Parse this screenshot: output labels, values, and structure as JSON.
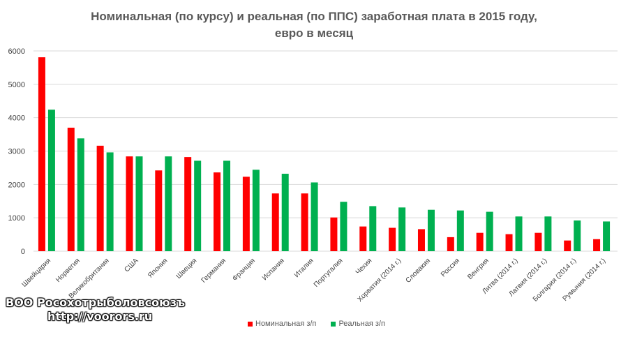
{
  "chart_data": {
    "type": "bar",
    "title_line1": "Номинальная (по курсу) и реальная (по ППС) заработная плата в 2015 году,",
    "title_line2": "евро в месяц",
    "categories": [
      "Швейцария",
      "Норвегия",
      "Великобритания",
      "США",
      "Япония",
      "Швеция",
      "Германия",
      "Франция",
      "Испания",
      "Италия",
      "Португалия",
      "Чехия",
      "Хорватия (2014 г.)",
      "Словакия",
      "Россия",
      "Венгрия",
      "Литва (2014 г.)",
      "Латвия (2014 г.)",
      "Болгария (2014 г.)",
      "Румыния (2014 г.)"
    ],
    "series": [
      {
        "name": "Номинальная з/п",
        "color": "#ff0000",
        "values": [
          5810,
          3700,
          3160,
          2840,
          2420,
          2820,
          2360,
          2230,
          1730,
          1730,
          1010,
          740,
          700,
          660,
          420,
          550,
          510,
          550,
          320,
          360
        ]
      },
      {
        "name": "Реальная з/п",
        "color": "#00b050",
        "values": [
          4240,
          3380,
          2960,
          2840,
          2840,
          2710,
          2710,
          2440,
          2320,
          2060,
          1480,
          1350,
          1310,
          1240,
          1220,
          1180,
          1040,
          1040,
          920,
          890
        ]
      }
    ],
    "yticks": [
      0,
      1000,
      2000,
      3000,
      4000,
      5000,
      6000
    ],
    "ylim": [
      0,
      6000
    ],
    "grid": true,
    "legend_position": "bottom"
  },
  "watermark": {
    "line1": "ВОО Росохотрыболовсоюзъ",
    "line2": "http://voorors.ru"
  }
}
